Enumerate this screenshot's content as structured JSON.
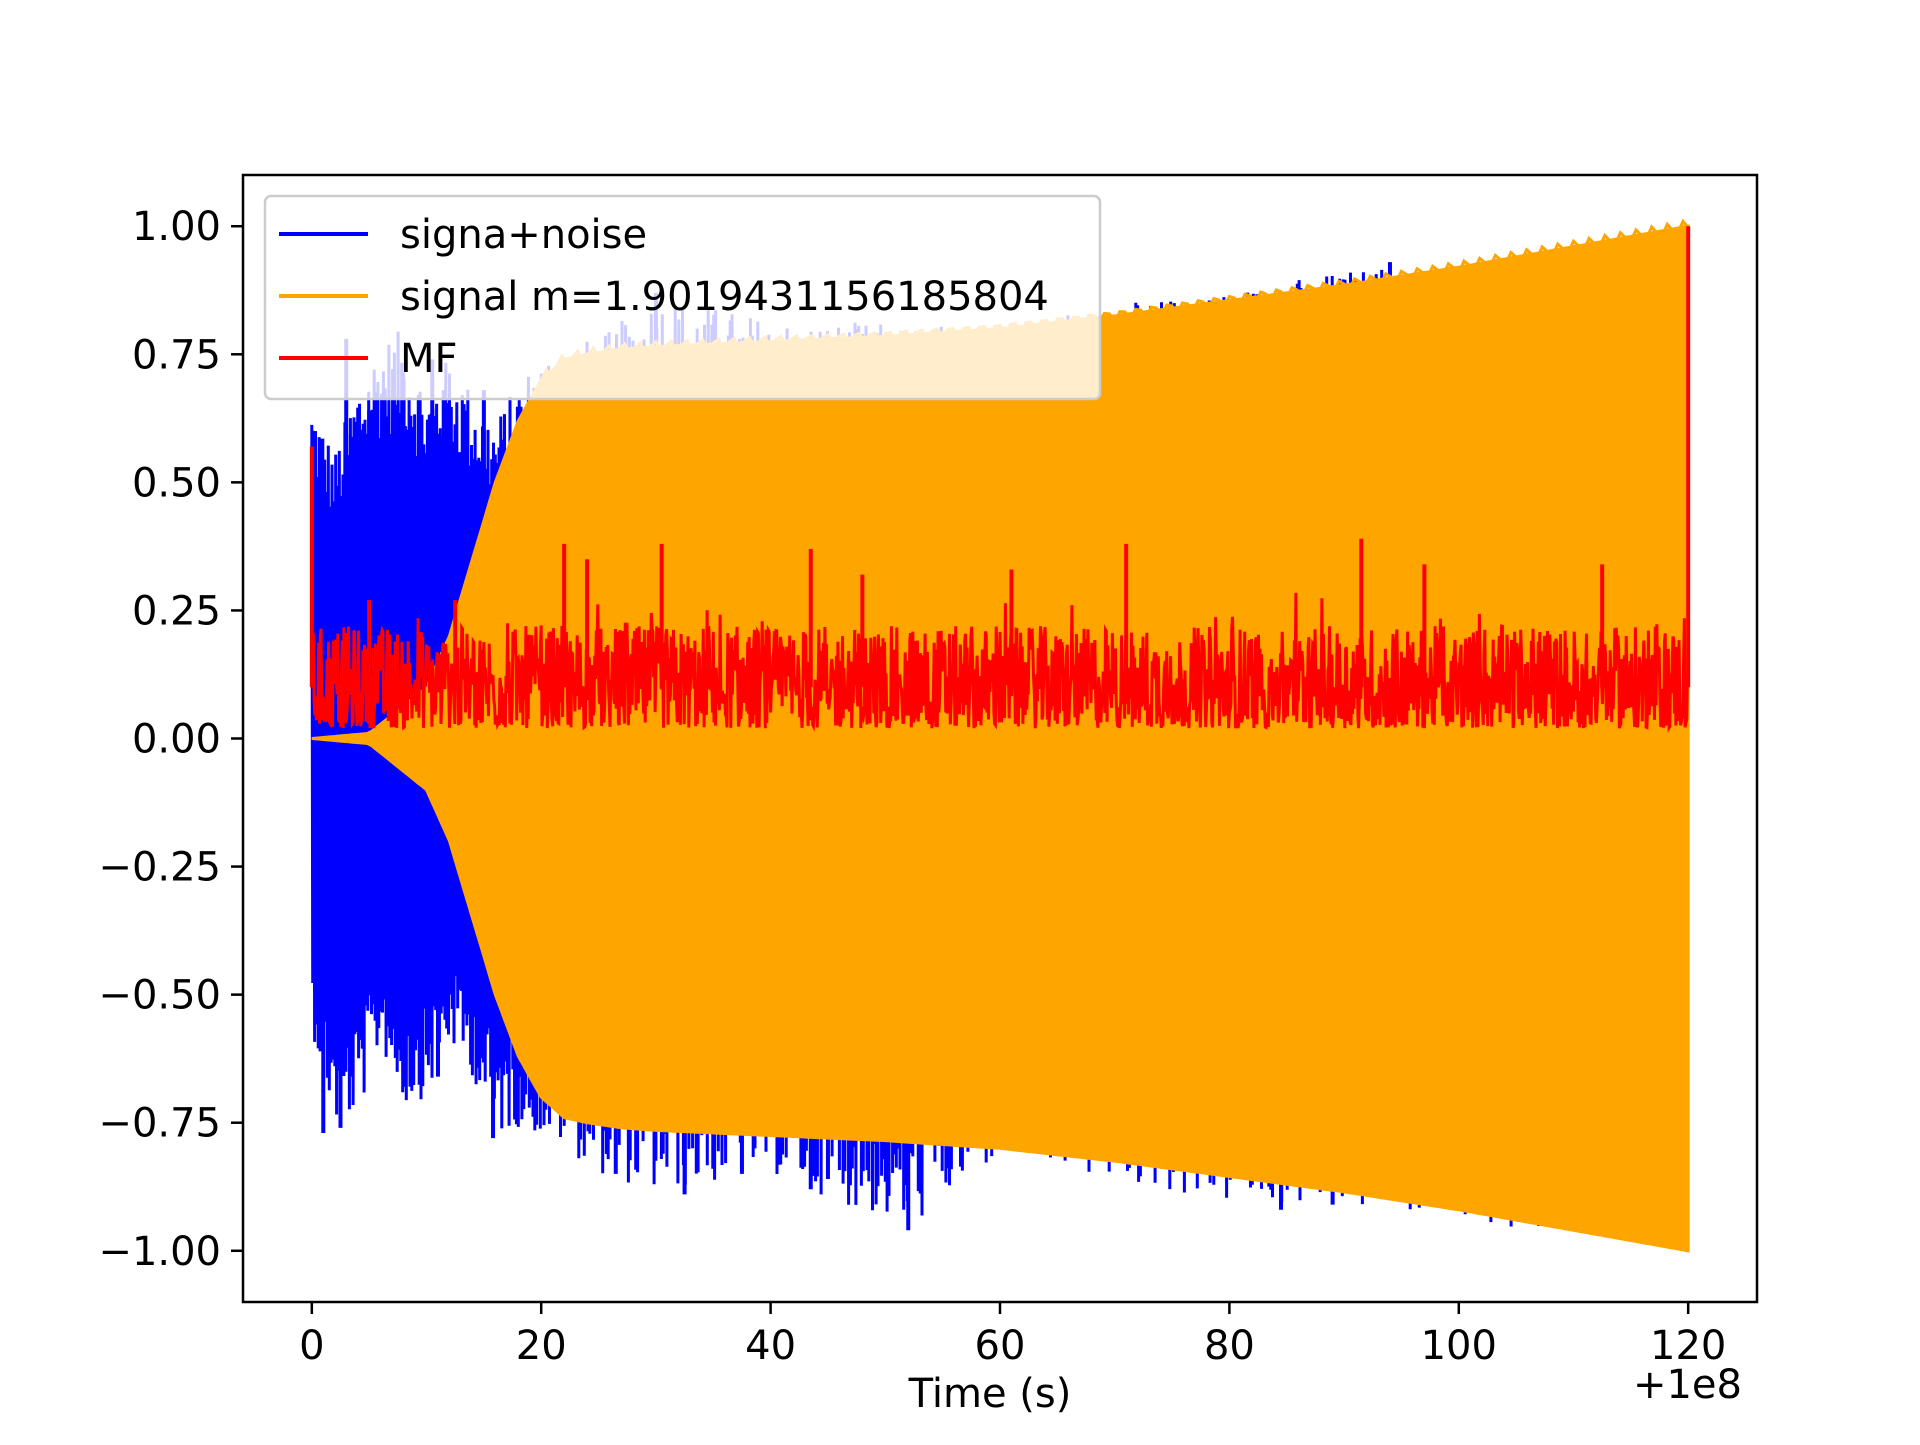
{
  "chart_data": {
    "type": "line",
    "title": "",
    "xlabel": "Time (s)",
    "ylabel": "",
    "x_offset_label": "+1e8",
    "xlim": [
      -6,
      126
    ],
    "ylim": [
      -1.1,
      1.1
    ],
    "xticks": [
      0,
      20,
      40,
      60,
      80,
      100,
      120
    ],
    "xtick_labels": [
      "0",
      "20",
      "40",
      "60",
      "80",
      "100",
      "120"
    ],
    "yticks": [
      1.0,
      0.75,
      0.5,
      0.25,
      0.0,
      -0.25,
      -0.5,
      -0.75,
      -1.0
    ],
    "ytick_labels": [
      "1.00",
      "0.75",
      "0.50",
      "0.25",
      "0.00",
      "−0.25",
      "−0.50",
      "−0.75",
      "−1.00"
    ],
    "grid": false,
    "legend_position": "upper-left",
    "series": [
      {
        "name": "signa+noise",
        "color": "#0000ff",
        "envelope": {
          "x": [
            0,
            2,
            4,
            6,
            8,
            10,
            12,
            14,
            16,
            18,
            20,
            22,
            25,
            30,
            40,
            52,
            60,
            80,
            94,
            100,
            120
          ],
          "upper": [
            0.67,
            0.56,
            0.7,
            0.78,
            0.8,
            0.68,
            0.75,
            0.68,
            0.62,
            0.7,
            0.75,
            0.78,
            0.78,
            0.87,
            0.82,
            0.81,
            0.81,
            0.88,
            0.93,
            0.92,
            1.0
          ],
          "lower": [
            -0.57,
            -0.76,
            -0.74,
            -0.6,
            -0.72,
            -0.7,
            -0.6,
            -0.66,
            -0.78,
            -0.76,
            -0.78,
            -0.8,
            -0.85,
            -0.89,
            -0.85,
            -0.96,
            -0.82,
            -0.91,
            -0.92,
            -0.94,
            -1.0
          ]
        },
        "spikes_upper": [
          {
            "x": 3.0,
            "y": 0.78
          },
          {
            "x": 5.0,
            "y": 0.64
          },
          {
            "x": 8.0,
            "y": 0.7
          },
          {
            "x": 10.5,
            "y": 0.74
          },
          {
            "x": 11.5,
            "y": 0.68
          },
          {
            "x": 13.5,
            "y": 0.64
          },
          {
            "x": 15.0,
            "y": 0.68
          },
          {
            "x": 30.0,
            "y": 0.87
          },
          {
            "x": 94.0,
            "y": 0.93
          }
        ],
        "spikes_lower": [
          {
            "x": 1.0,
            "y": -0.77
          },
          {
            "x": 2.5,
            "y": -0.76
          },
          {
            "x": 3.5,
            "y": -0.66
          },
          {
            "x": 8.0,
            "y": -0.68
          },
          {
            "x": 11.0,
            "y": -0.66
          },
          {
            "x": 15.8,
            "y": -0.78
          },
          {
            "x": 26.5,
            "y": -0.85
          },
          {
            "x": 32.5,
            "y": -0.89
          },
          {
            "x": 35.0,
            "y": -0.84
          },
          {
            "x": 37.5,
            "y": -0.85
          },
          {
            "x": 43.5,
            "y": -0.88
          },
          {
            "x": 45.0,
            "y": -0.86
          },
          {
            "x": 52.0,
            "y": -0.96
          },
          {
            "x": 84.5,
            "y": -0.92
          },
          {
            "x": 89.0,
            "y": -0.91
          }
        ]
      },
      {
        "name": "signal m=1.9019431156185804",
        "color": "#ffa500",
        "envelope": {
          "x": [
            0,
            5,
            10,
            12,
            14,
            16,
            18,
            20,
            22,
            24,
            27,
            30,
            40,
            50,
            60,
            70,
            80,
            90,
            100,
            110,
            120
          ],
          "upper": [
            0.0,
            0.01,
            0.1,
            0.2,
            0.35,
            0.5,
            0.62,
            0.7,
            0.74,
            0.75,
            0.76,
            0.765,
            0.775,
            0.785,
            0.8,
            0.825,
            0.855,
            0.885,
            0.92,
            0.96,
            1.0
          ],
          "lower": [
            0.0,
            -0.01,
            -0.1,
            -0.2,
            -0.35,
            -0.5,
            -0.62,
            -0.7,
            -0.74,
            -0.75,
            -0.76,
            -0.765,
            -0.775,
            -0.785,
            -0.8,
            -0.825,
            -0.855,
            -0.885,
            -0.92,
            -0.96,
            -1.0
          ]
        }
      },
      {
        "name": "MF",
        "color": "#ff0000",
        "baseline": 0.1,
        "noise_band": [
          0.02,
          0.22
        ],
        "peaks": [
          {
            "x": 0.0,
            "y": 0.57
          },
          {
            "x": 5.0,
            "y": 0.27
          },
          {
            "x": 12.5,
            "y": 0.27
          },
          {
            "x": 22.0,
            "y": 0.38
          },
          {
            "x": 24.0,
            "y": 0.35
          },
          {
            "x": 30.5,
            "y": 0.38
          },
          {
            "x": 43.5,
            "y": 0.37
          },
          {
            "x": 48.0,
            "y": 0.32
          },
          {
            "x": 61.0,
            "y": 0.33
          },
          {
            "x": 71.0,
            "y": 0.38
          },
          {
            "x": 91.5,
            "y": 0.39
          },
          {
            "x": 97.0,
            "y": 0.34
          },
          {
            "x": 112.5,
            "y": 0.34
          },
          {
            "x": 120.0,
            "y": 1.0
          }
        ]
      }
    ]
  }
}
